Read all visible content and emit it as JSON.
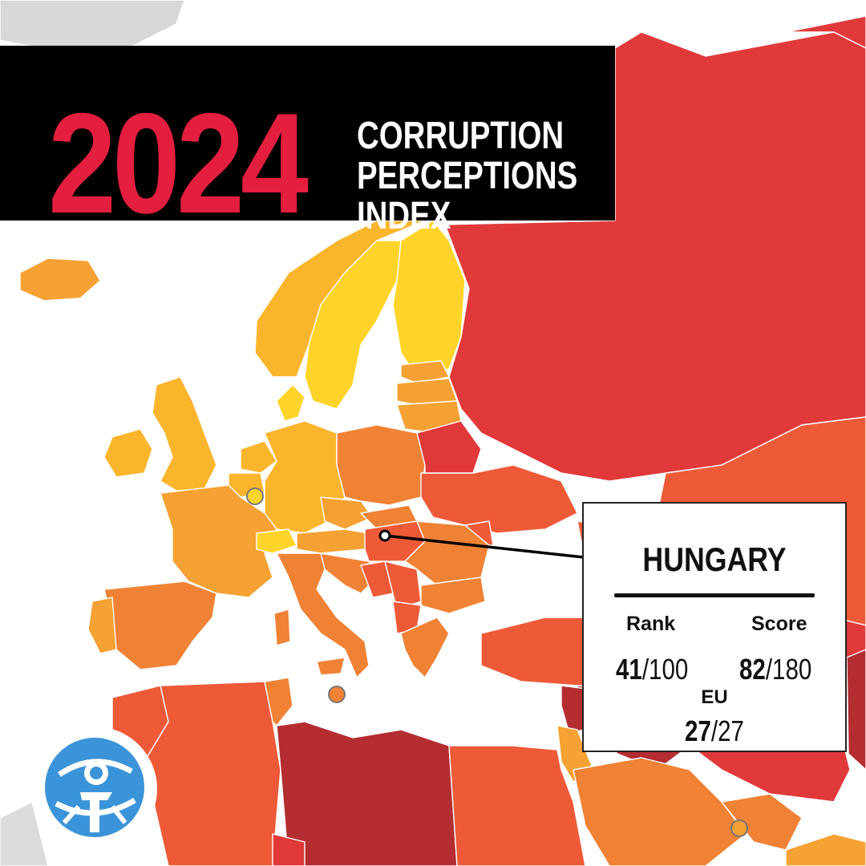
{
  "title": {
    "year": "2024",
    "line1": "CORRUPTION",
    "line2": "PERCEPTIONS",
    "line3": "INDEX"
  },
  "callout": {
    "country": "HUNGARY",
    "rank_label": "Rank",
    "score_label": "Score",
    "rank_value": "41",
    "rank_total": "/100",
    "score_value": "82",
    "score_total": "/180",
    "eu_label": "EU",
    "eu_value": "27",
    "eu_total": "/27"
  },
  "colors": {
    "title_background": "#000000",
    "title_year": "#e31e3e",
    "title_text": "#ffffff",
    "very_clean": "#ffd42a",
    "clean": "#fbb52d",
    "moderate": "#f5a133",
    "middle": "#f08235",
    "corrupt": "#ee5a38",
    "very_corrupt": "#e1393a",
    "highly_corrupt": "#b32d31",
    "logo_blue": "#3b94d9"
  },
  "icons": {
    "logo": "transparency-international-logo",
    "marker": "hungary-location-marker"
  }
}
